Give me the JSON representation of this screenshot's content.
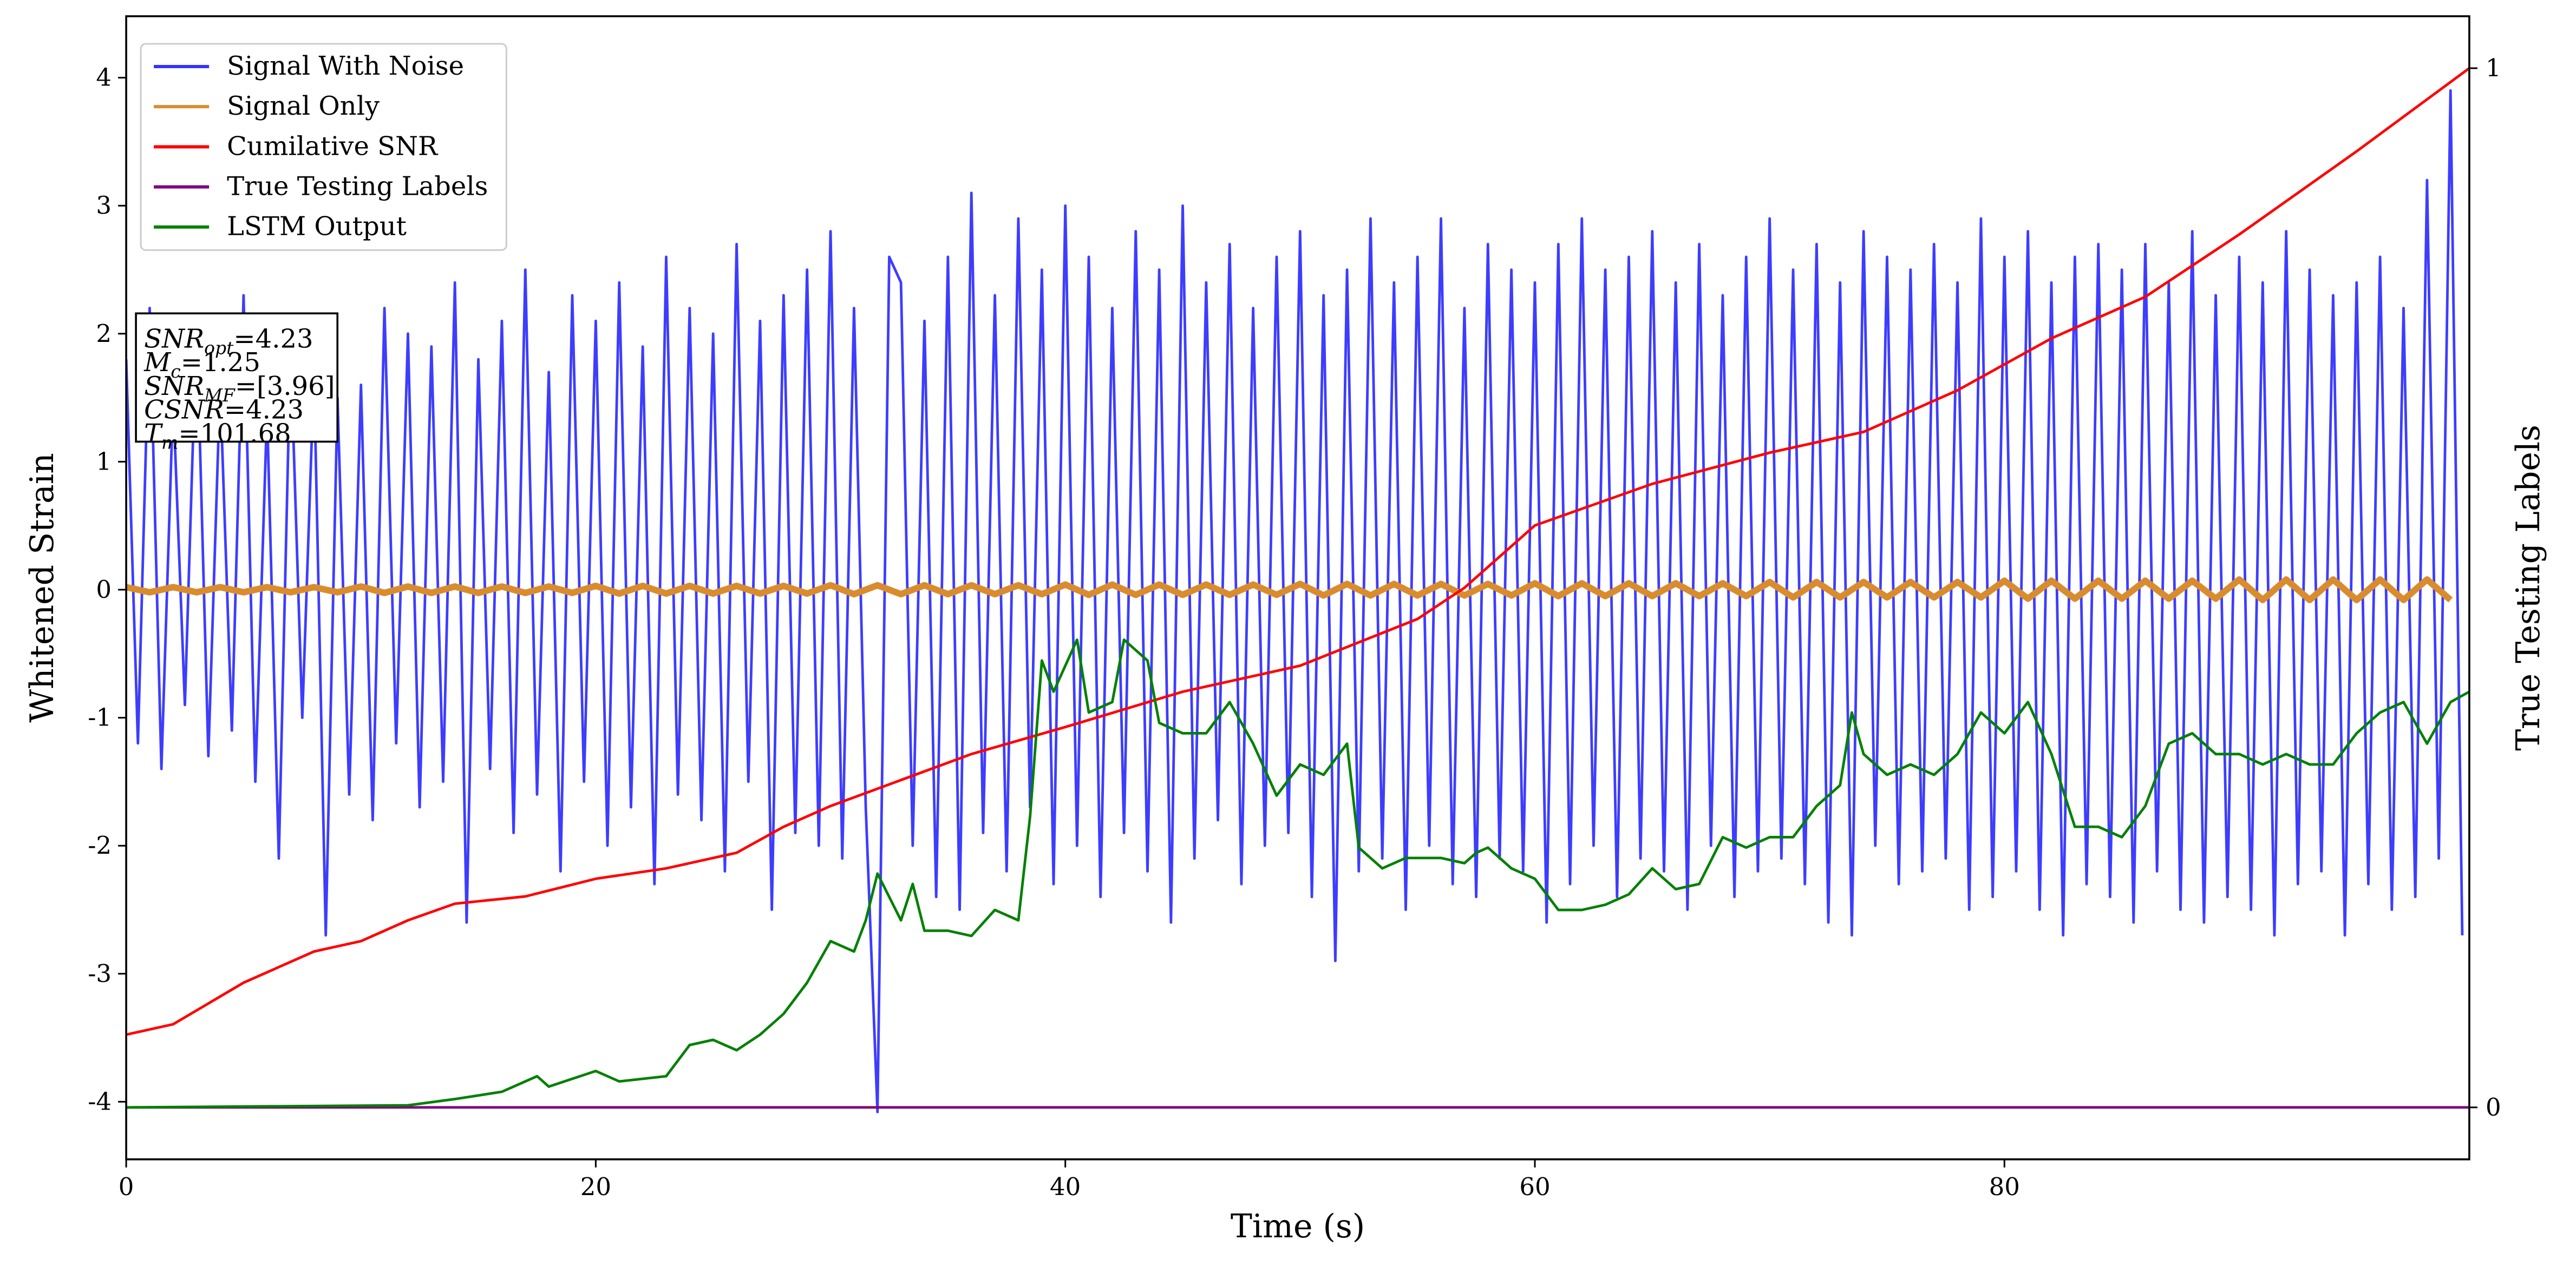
{
  "chart_data": {
    "type": "line",
    "xlabel": "Time (s)",
    "ylabel": "Whitened Strain",
    "y2label": "True Testing Labels",
    "xlim": [
      0,
      99.8
    ],
    "xticks": [
      0,
      20,
      40,
      60,
      80
    ],
    "ylim": [
      -4.45,
      4.48
    ],
    "yticks": [
      -4,
      -3,
      -2,
      -1,
      0,
      1,
      2,
      3,
      4
    ],
    "y2lim": [
      -0.05,
      1.05
    ],
    "y2ticks": [
      0,
      1
    ],
    "legend": "upper left",
    "annotation": [
      [
        "SNR",
        "opt",
        "=4.23"
      ],
      [
        "M",
        "c",
        "=1.25"
      ],
      [
        "SNR",
        "MF",
        "=[3.96]"
      ],
      [
        "CSNR",
        "",
        "=4.23"
      ],
      [
        "T",
        "m",
        "=101.68"
      ]
    ],
    "series": [
      {
        "name": "Signal With Noise",
        "color": "#3333ff",
        "x": [
          0,
          0.5,
          1,
          1.5,
          2,
          2.5,
          3,
          3.5,
          4,
          4.5,
          5,
          5.5,
          6,
          6.5,
          7,
          7.5,
          8,
          8.5,
          9,
          9.5,
          10,
          10.5,
          11,
          11.5,
          12,
          12.5,
          13,
          13.5,
          14,
          14.5,
          15,
          15.5,
          16,
          16.5,
          17,
          17.5,
          18,
          18.5,
          19,
          19.5,
          20,
          20.5,
          21,
          21.5,
          22,
          22.5,
          23,
          23.5,
          24,
          24.5,
          25,
          25.5,
          26,
          26.5,
          27,
          27.5,
          28,
          28.5,
          29,
          29.5,
          30,
          30.5,
          31,
          31.5,
          32,
          32.5,
          33,
          33.5,
          34,
          34.5,
          35,
          35.5,
          36,
          36.5,
          37,
          37.5,
          38,
          38.5,
          39,
          39.5,
          40,
          40.5,
          41,
          41.5,
          42,
          42.5,
          43,
          43.5,
          44,
          44.5,
          45,
          45.5,
          46,
          46.5,
          47,
          47.5,
          48,
          48.5,
          49,
          49.5,
          50,
          50.5,
          51,
          51.5,
          52,
          52.5,
          53,
          53.5,
          54,
          54.5,
          55,
          55.5,
          56,
          56.5,
          57,
          57.5,
          58,
          58.5,
          59,
          59.5,
          60,
          60.5,
          61,
          61.5,
          62,
          62.5,
          63,
          63.5,
          64,
          64.5,
          65,
          65.5,
          66,
          66.5,
          67,
          67.5,
          68,
          68.5,
          69,
          69.5,
          70,
          70.5,
          71,
          71.5,
          72,
          72.5,
          73,
          73.5,
          74,
          74.5,
          75,
          75.5,
          76,
          76.5,
          77,
          77.5,
          78,
          78.5,
          79,
          79.5,
          80,
          80.5,
          81,
          81.5,
          82,
          82.5,
          83,
          83.5,
          84,
          84.5,
          85,
          85.5,
          86,
          86.5,
          87,
          87.5,
          88,
          88.5,
          89,
          89.5,
          90,
          90.5,
          91,
          91.5,
          92,
          92.5,
          93,
          93.5,
          94,
          94.5,
          95,
          95.5,
          96,
          96.5,
          97,
          97.5,
          98,
          98.5,
          99,
          99.5
        ],
        "values": [
          1.8,
          -1.2,
          2.2,
          -1.4,
          1.5,
          -0.9,
          2.1,
          -1.3,
          1.6,
          -1.1,
          2.3,
          -1.5,
          1.4,
          -2.1,
          1.9,
          -1.0,
          1.7,
          -2.7,
          1.5,
          -1.6,
          1.6,
          -1.8,
          2.2,
          -1.2,
          2.0,
          -1.7,
          1.9,
          -1.5,
          2.4,
          -2.6,
          1.8,
          -1.4,
          2.1,
          -1.9,
          2.5,
          -1.6,
          1.7,
          -2.2,
          2.3,
          -1.5,
          2.1,
          -2.0,
          2.4,
          -1.7,
          1.9,
          -2.3,
          2.6,
          -1.6,
          2.2,
          -1.8,
          2.0,
          -2.2,
          2.7,
          -1.5,
          2.1,
          -2.5,
          2.3,
          -1.9,
          2.5,
          -2.0,
          2.8,
          -2.1,
          2.2,
          -1.7,
          -4.08,
          2.6,
          2.4,
          -2.0,
          2.1,
          -2.4,
          2.6,
          -2.5,
          3.1,
          -1.9,
          2.3,
          -2.2,
          2.9,
          -1.7,
          2.5,
          -2.3,
          3.0,
          -2.0,
          2.6,
          -2.4,
          2.2,
          -1.9,
          2.8,
          -2.2,
          2.5,
          -2.6,
          3.0,
          -2.1,
          2.4,
          -1.8,
          2.7,
          -2.3,
          2.2,
          -2.0,
          2.6,
          -1.9,
          2.8,
          -2.4,
          2.3,
          -2.9,
          2.5,
          -2.2,
          2.9,
          -2.1,
          2.4,
          -2.5,
          2.6,
          -2.0,
          2.9,
          -2.3,
          2.2,
          -2.4,
          2.7,
          -2.1,
          2.5,
          -2.2,
          2.4,
          -2.6,
          2.7,
          -2.3,
          2.9,
          -2.0,
          2.5,
          -2.4,
          2.6,
          -2.1,
          2.8,
          -2.2,
          2.4,
          -2.5,
          2.7,
          -2.0,
          2.3,
          -2.4,
          2.6,
          -2.2,
          2.9,
          -2.1,
          2.5,
          -2.3,
          2.7,
          -2.6,
          2.4,
          -2.7,
          2.8,
          -2.0,
          2.6,
          -2.3,
          2.5,
          -2.2,
          2.7,
          -2.1,
          2.4,
          -2.5,
          2.9,
          -2.4,
          2.6,
          -2.2,
          2.8,
          -2.5,
          2.4,
          -2.7,
          2.6,
          -2.3,
          2.7,
          -2.4,
          2.5,
          -2.6,
          2.7,
          -2.2,
          2.4,
          -2.5,
          2.8,
          -2.6,
          2.3,
          -2.4,
          2.6,
          -2.5,
          2.4,
          -2.7,
          2.8,
          -2.3,
          2.5,
          -2.2,
          2.3,
          -2.7,
          2.4,
          -2.3,
          2.6,
          -2.5,
          2.2,
          -2.4,
          3.2,
          -2.1,
          3.9,
          -2.7
        ]
      },
      {
        "name": "Signal Only",
        "color": "#d98c2e",
        "x": [
          0,
          1,
          2,
          3,
          4,
          5,
          6,
          7,
          8,
          9,
          10,
          11,
          12,
          13,
          14,
          15,
          16,
          17,
          18,
          19,
          20,
          21,
          22,
          23,
          24,
          25,
          26,
          27,
          28,
          29,
          30,
          31,
          32,
          33,
          34,
          35,
          36,
          37,
          38,
          39,
          40,
          41,
          42,
          43,
          44,
          45,
          46,
          47,
          48,
          49,
          50,
          51,
          52,
          53,
          54,
          55,
          56,
          57,
          58,
          59,
          60,
          61,
          62,
          63,
          64,
          65,
          66,
          67,
          68,
          69,
          70,
          71,
          72,
          73,
          74,
          75,
          76,
          77,
          78,
          79,
          80,
          81,
          82,
          83,
          84,
          85,
          86,
          87,
          88,
          89,
          90,
          91,
          92,
          93,
          94,
          95,
          96,
          97,
          98,
          99
        ],
        "values": [
          0.02,
          -0.02,
          0.02,
          -0.02,
          0.02,
          -0.02,
          0.02,
          -0.02,
          0.02,
          -0.02,
          0.025,
          -0.025,
          0.025,
          -0.025,
          0.025,
          -0.025,
          0.025,
          -0.025,
          0.025,
          -0.025,
          0.03,
          -0.03,
          0.03,
          -0.03,
          0.03,
          -0.03,
          0.03,
          -0.03,
          0.03,
          -0.03,
          0.035,
          -0.035,
          0.035,
          -0.035,
          0.035,
          -0.035,
          0.035,
          -0.035,
          0.035,
          -0.035,
          0.04,
          -0.04,
          0.04,
          -0.04,
          0.04,
          -0.04,
          0.04,
          -0.04,
          0.04,
          -0.04,
          0.045,
          -0.045,
          0.045,
          -0.045,
          0.045,
          -0.045,
          0.045,
          -0.045,
          0.045,
          -0.045,
          0.05,
          -0.05,
          0.05,
          -0.05,
          0.05,
          -0.05,
          0.05,
          -0.05,
          0.05,
          -0.05,
          0.06,
          -0.06,
          0.06,
          -0.06,
          0.06,
          -0.06,
          0.06,
          -0.06,
          0.06,
          -0.06,
          0.07,
          -0.07,
          0.07,
          -0.07,
          0.07,
          -0.07,
          0.07,
          -0.07,
          0.07,
          -0.07,
          0.08,
          -0.08,
          0.08,
          -0.08,
          0.08,
          -0.08,
          0.08,
          -0.08,
          0.08,
          -0.08
        ]
      },
      {
        "name": "Cumilative SNR",
        "color": "#ff0000",
        "axis": "y2",
        "x": [
          0,
          2,
          5,
          8,
          10,
          12,
          14,
          17,
          20,
          23,
          26,
          28,
          30,
          33,
          36,
          40,
          45,
          50,
          55,
          57,
          60,
          65,
          70,
          74,
          78,
          82,
          86,
          90,
          95,
          99.8
        ],
        "values": [
          0.07,
          0.08,
          0.12,
          0.15,
          0.16,
          0.18,
          0.196,
          0.203,
          0.22,
          0.23,
          0.245,
          0.27,
          0.29,
          0.315,
          0.34,
          0.366,
          0.4,
          0.425,
          0.47,
          0.5,
          0.56,
          0.6,
          0.63,
          0.65,
          0.69,
          0.74,
          0.78,
          0.84,
          0.92,
          1.0
        ]
      },
      {
        "name": "True Testing Labels",
        "color": "#800080",
        "axis": "y2",
        "x": [
          0,
          99.8
        ],
        "values": [
          0,
          0
        ]
      },
      {
        "name": "LSTM Output",
        "color": "#008000",
        "axis": "y2",
        "x": [
          0,
          12,
          14,
          16,
          17.5,
          18,
          20,
          21,
          23,
          24,
          25,
          26,
          27,
          28,
          29,
          30,
          31,
          31.5,
          32,
          33,
          33.5,
          34,
          35,
          36,
          37,
          38,
          38.5,
          39,
          39.5,
          40.5,
          41,
          42,
          42.5,
          43.5,
          44,
          45,
          46,
          47,
          48,
          49,
          50,
          51,
          52,
          52.5,
          53.5,
          54.5,
          56,
          57,
          57.5,
          58,
          59,
          60,
          61,
          62,
          63,
          64,
          65,
          66,
          67,
          68,
          69,
          70,
          71,
          72,
          73,
          73.5,
          74,
          75,
          76,
          77,
          78,
          79,
          80,
          81,
          82,
          83,
          84,
          85,
          86,
          87,
          88,
          89,
          90,
          91,
          92,
          93,
          94,
          95,
          96,
          97,
          98,
          99,
          99.8
        ],
        "values": [
          0,
          0.002,
          0.008,
          0.015,
          0.03,
          0.02,
          0.035,
          0.025,
          0.03,
          0.06,
          0.065,
          0.055,
          0.07,
          0.09,
          0.12,
          0.16,
          0.15,
          0.18,
          0.225,
          0.18,
          0.215,
          0.17,
          0.17,
          0.165,
          0.19,
          0.18,
          0.28,
          0.43,
          0.4,
          0.45,
          0.38,
          0.39,
          0.45,
          0.43,
          0.37,
          0.36,
          0.36,
          0.39,
          0.35,
          0.3,
          0.33,
          0.32,
          0.35,
          0.25,
          0.23,
          0.24,
          0.24,
          0.235,
          0.245,
          0.25,
          0.23,
          0.22,
          0.19,
          0.19,
          0.195,
          0.205,
          0.23,
          0.21,
          0.215,
          0.26,
          0.25,
          0.26,
          0.26,
          0.29,
          0.31,
          0.38,
          0.34,
          0.32,
          0.33,
          0.32,
          0.34,
          0.38,
          0.36,
          0.39,
          0.34,
          0.27,
          0.27,
          0.26,
          0.29,
          0.35,
          0.36,
          0.34,
          0.34,
          0.33,
          0.34,
          0.33,
          0.33,
          0.36,
          0.38,
          0.39,
          0.35,
          0.39,
          0.4
        ]
      }
    ]
  }
}
